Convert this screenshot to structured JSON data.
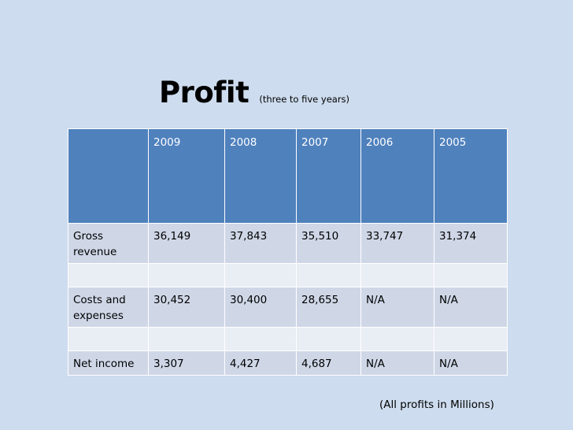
{
  "slide": {
    "title": "Profit",
    "subtitle": "(three to five years)",
    "footnote": "(All profits in Millions)"
  },
  "table": {
    "header": [
      "",
      "2009",
      "2008",
      "2007",
      "2006",
      "2005"
    ],
    "rows": [
      [
        "Gross revenue",
        "36,149",
        "37,843",
        "35,510",
        "33,747",
        "31,374"
      ],
      [
        "",
        "",
        "",
        "",
        "",
        ""
      ],
      [
        "Costs and expenses",
        "30,452",
        "30,400",
        "28,655",
        "N/A",
        "N/A"
      ],
      [
        "",
        "",
        "",
        "",
        "",
        ""
      ],
      [
        "Net income",
        "3,307",
        "4,427",
        "4,687",
        "N/A",
        "N/A"
      ]
    ]
  },
  "colors": {
    "background": "#cddcee",
    "header_fill": "#4f81bd",
    "row_dark": "#cfd7e7",
    "row_light": "#e9edf4"
  }
}
